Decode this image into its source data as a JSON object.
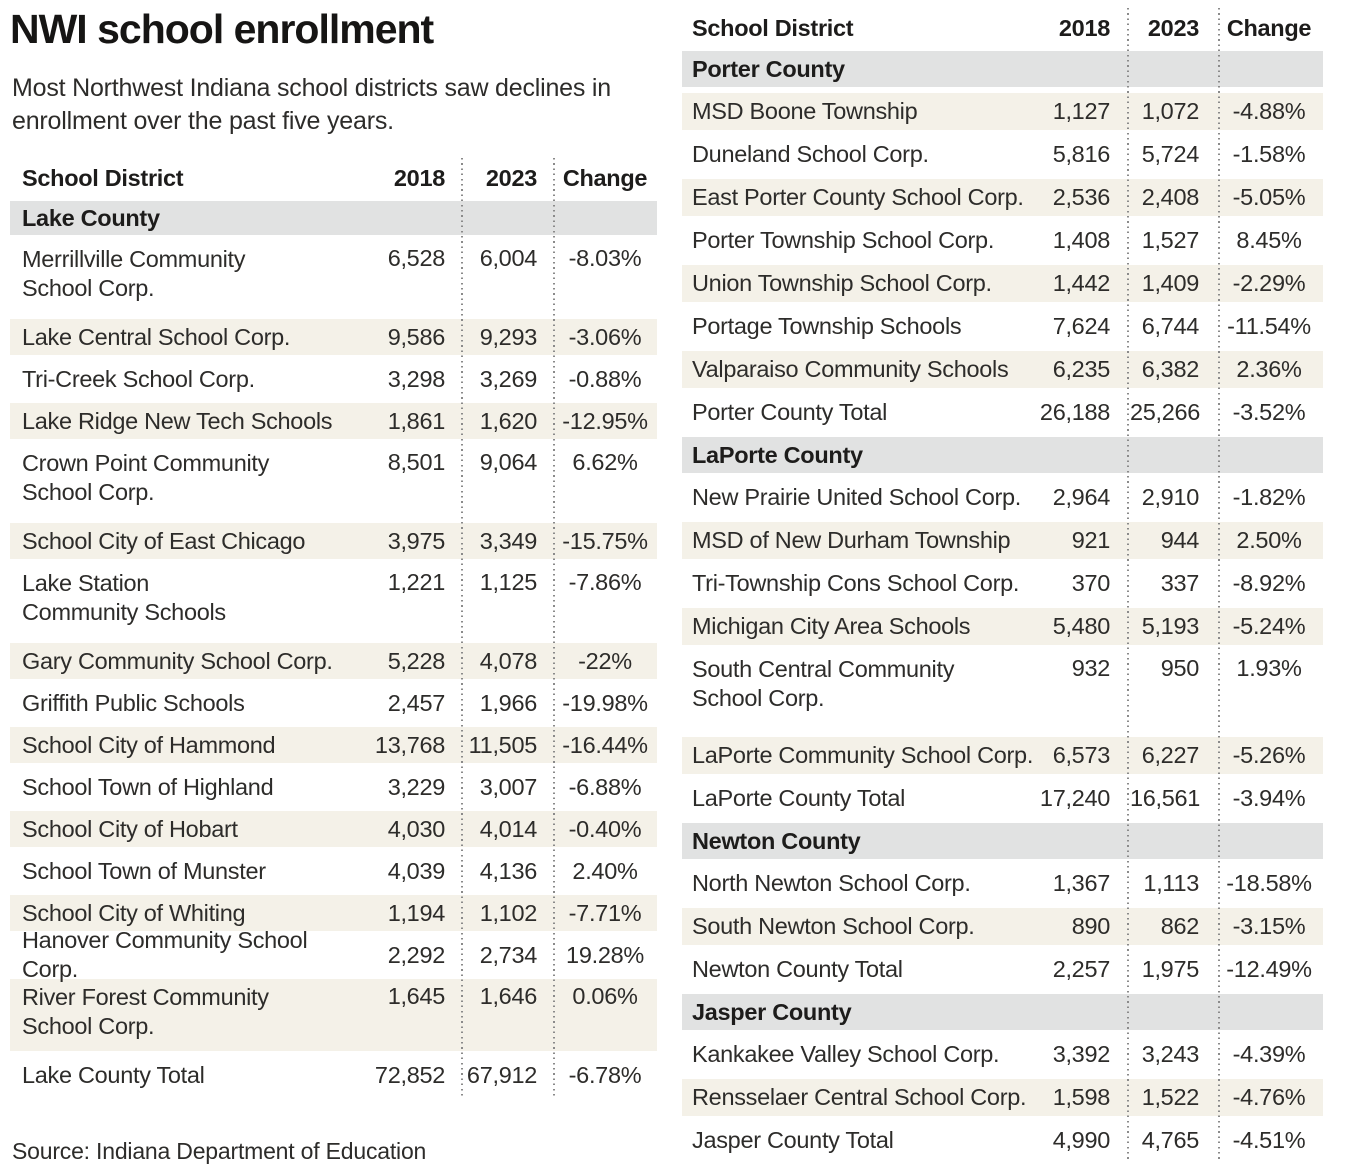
{
  "title": "NWI school enrollment",
  "subtitle_lines": [
    "Most Northwest Indiana school districts saw declines in",
    "enrollment over the past five years."
  ],
  "source": "Source: Indiana Department of Education",
  "colors": {
    "row_shade": "#f4f1e8",
    "county_band": "#e1e2e2",
    "text": "#2d2c2a",
    "separator_dots": "#8a8a8a"
  },
  "chart_data": {
    "type": "table",
    "title": "NWI school enrollment",
    "columns": [
      "School District",
      "2018",
      "2023",
      "Change"
    ],
    "tables": [
      {
        "side": "left",
        "sections": [
          {
            "county": "Lake County",
            "rows": [
              {
                "lines": [
                  "Merrillville Community",
                  "School Corp."
                ],
                "y2018": "6,528",
                "y2023": "6,004",
                "change": "-8.03%",
                "shaded": false
              },
              {
                "lines": [
                  "Lake Central School Corp."
                ],
                "y2018": "9,586",
                "y2023": "9,293",
                "change": "-3.06%",
                "shaded": true
              },
              {
                "lines": [
                  "Tri-Creek School Corp."
                ],
                "y2018": "3,298",
                "y2023": "3,269",
                "change": "-0.88%",
                "shaded": false
              },
              {
                "lines": [
                  "Lake Ridge New Tech Schools"
                ],
                "y2018": "1,861",
                "y2023": "1,620",
                "change": "-12.95%",
                "shaded": true
              },
              {
                "lines": [
                  "Crown Point Community",
                  "School Corp."
                ],
                "y2018": "8,501",
                "y2023": "9,064",
                "change": "6.62%",
                "shaded": false
              },
              {
                "lines": [
                  "School City of East Chicago"
                ],
                "y2018": "3,975",
                "y2023": "3,349",
                "change": "-15.75%",
                "shaded": true
              },
              {
                "lines": [
                  "Lake Station",
                  "Community Schools"
                ],
                "y2018": "1,221",
                "y2023": "1,125",
                "change": "-7.86%",
                "shaded": false
              },
              {
                "lines": [
                  "Gary Community School Corp."
                ],
                "y2018": "5,228",
                "y2023": "4,078",
                "change": "-22%",
                "shaded": true
              },
              {
                "lines": [
                  "Griffith Public Schools"
                ],
                "y2018": "2,457",
                "y2023": "1,966",
                "change": "-19.98%",
                "shaded": false
              },
              {
                "lines": [
                  "School City of Hammond"
                ],
                "y2018": "13,768",
                "y2023": "11,505",
                "change": "-16.44%",
                "shaded": true
              },
              {
                "lines": [
                  "School Town of Highland"
                ],
                "y2018": "3,229",
                "y2023": "3,007",
                "change": "-6.88%",
                "shaded": false
              },
              {
                "lines": [
                  "School City of Hobart"
                ],
                "y2018": "4,030",
                "y2023": "4,014",
                "change": "-0.40%",
                "shaded": true
              },
              {
                "lines": [
                  "School Town of Munster"
                ],
                "y2018": "4,039",
                "y2023": "4,136",
                "change": "2.40%",
                "shaded": false
              },
              {
                "lines": [
                  "School City of Whiting"
                ],
                "y2018": "1,194",
                "y2023": "1,102",
                "change": "-7.71%",
                "shaded": true
              },
              {
                "lines": [
                  "Hanover Community School Corp."
                ],
                "y2018": "2,292",
                "y2023": "2,734",
                "change": "19.28%",
                "shaded": false
              },
              {
                "lines": [
                  "River Forest Community",
                  "School Corp."
                ],
                "y2018": "1,645",
                "y2023": "1,646",
                "change": "0.06%",
                "shaded": true
              },
              {
                "lines": [
                  "Lake County Total"
                ],
                "y2018": "72,852",
                "y2023": "67,912",
                "change": "-6.78%",
                "shaded": false
              }
            ]
          }
        ]
      },
      {
        "side": "right",
        "sections": [
          {
            "county": "Porter County",
            "rows": [
              {
                "lines": [
                  "MSD Boone Township"
                ],
                "y2018": "1,127",
                "y2023": "1,072",
                "change": "-4.88%",
                "shaded": true
              },
              {
                "lines": [
                  "Duneland School Corp."
                ],
                "y2018": "5,816",
                "y2023": "5,724",
                "change": "-1.58%",
                "shaded": false
              },
              {
                "lines": [
                  "East Porter County School Corp."
                ],
                "y2018": "2,536",
                "y2023": "2,408",
                "change": "-5.05%",
                "shaded": true
              },
              {
                "lines": [
                  "Porter Township School Corp."
                ],
                "y2018": "1,408",
                "y2023": "1,527",
                "change": "8.45%",
                "shaded": false
              },
              {
                "lines": [
                  "Union Township School Corp."
                ],
                "y2018": "1,442",
                "y2023": "1,409",
                "change": "-2.29%",
                "shaded": true
              },
              {
                "lines": [
                  "Portage Township Schools"
                ],
                "y2018": "7,624",
                "y2023": "6,744",
                "change": "-11.54%",
                "shaded": false
              },
              {
                "lines": [
                  "Valparaiso Community Schools"
                ],
                "y2018": "6,235",
                "y2023": "6,382",
                "change": "2.36%",
                "shaded": true
              },
              {
                "lines": [
                  "Porter County Total"
                ],
                "y2018": "26,188",
                "y2023": "25,266",
                "change": "-3.52%",
                "shaded": false
              }
            ]
          },
          {
            "county": "LaPorte County",
            "rows": [
              {
                "lines": [
                  "New Prairie United School Corp."
                ],
                "y2018": "2,964",
                "y2023": "2,910",
                "change": "-1.82%",
                "shaded": false
              },
              {
                "lines": [
                  "MSD of New Durham Township"
                ],
                "y2018": "921",
                "y2023": "944",
                "change": "2.50%",
                "shaded": true
              },
              {
                "lines": [
                  "Tri-Township Cons School Corp."
                ],
                "y2018": "370",
                "y2023": "337",
                "change": "-8.92%",
                "shaded": false
              },
              {
                "lines": [
                  "Michigan City Area Schools"
                ],
                "y2018": "5,480",
                "y2023": "5,193",
                "change": "-5.24%",
                "shaded": true
              },
              {
                "lines": [
                  "South Central Community",
                  "School Corp."
                ],
                "y2018": "932",
                "y2023": "950",
                "change": "1.93%",
                "shaded": false
              },
              {
                "lines": [
                  "LaPorte Community School Corp."
                ],
                "y2018": "6,573",
                "y2023": "6,227",
                "change": "-5.26%",
                "shaded": true
              },
              {
                "lines": [
                  "LaPorte County Total"
                ],
                "y2018": "17,240",
                "y2023": "16,561",
                "change": "-3.94%",
                "shaded": false
              }
            ]
          },
          {
            "county": "Newton County",
            "rows": [
              {
                "lines": [
                  "North Newton School Corp."
                ],
                "y2018": "1,367",
                "y2023": "1,113",
                "change": "-18.58%",
                "shaded": false
              },
              {
                "lines": [
                  "South Newton School Corp."
                ],
                "y2018": "890",
                "y2023": "862",
                "change": "-3.15%",
                "shaded": true
              },
              {
                "lines": [
                  "Newton County Total"
                ],
                "y2018": "2,257",
                "y2023": "1,975",
                "change": "-12.49%",
                "shaded": false
              }
            ]
          },
          {
            "county": "Jasper County",
            "rows": [
              {
                "lines": [
                  "Kankakee Valley School Corp."
                ],
                "y2018": "3,392",
                "y2023": "3,243",
                "change": "-4.39%",
                "shaded": false
              },
              {
                "lines": [
                  "Rensselaer Central School Corp."
                ],
                "y2018": "1,598",
                "y2023": "1,522",
                "change": "-4.76%",
                "shaded": true
              },
              {
                "lines": [
                  "Jasper County Total"
                ],
                "y2018": "4,990",
                "y2023": "4,765",
                "change": "-4.51%",
                "shaded": false
              }
            ]
          }
        ]
      }
    ]
  }
}
